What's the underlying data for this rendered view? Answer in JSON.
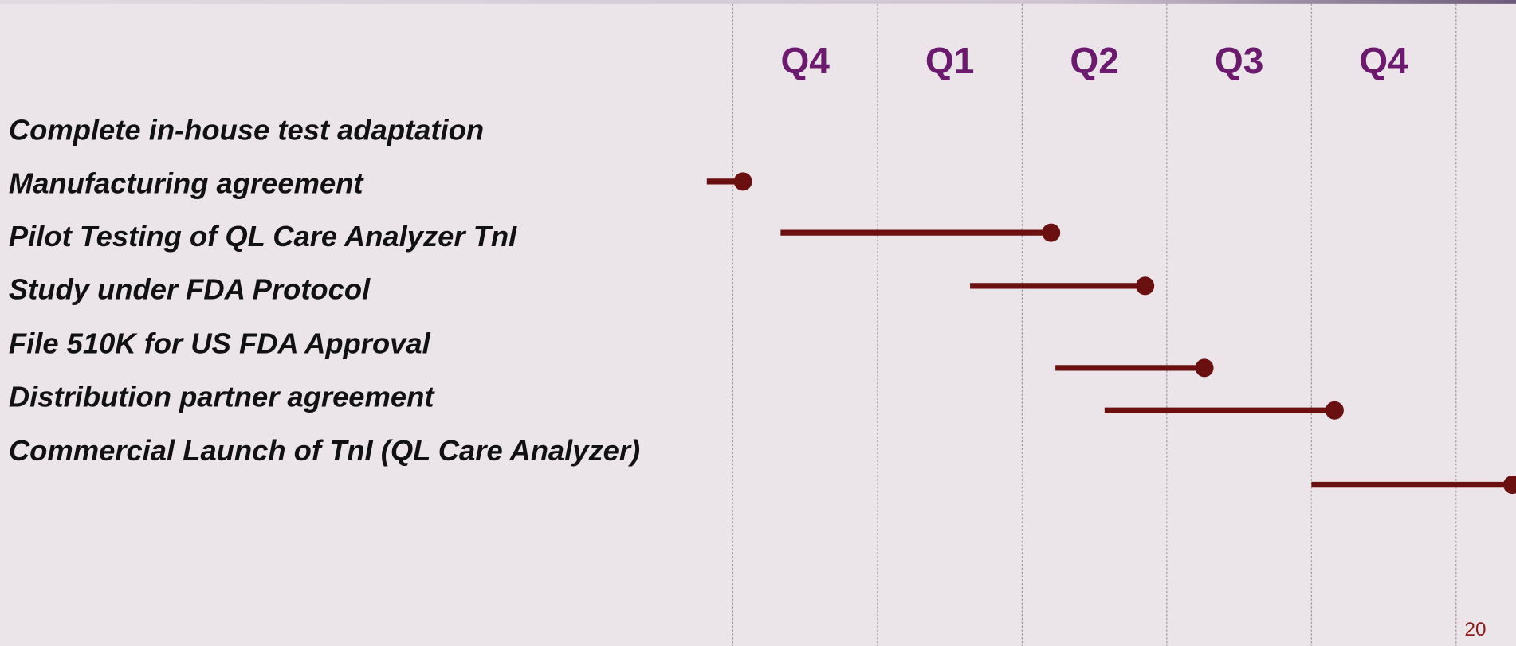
{
  "chart_data": {
    "type": "gantt",
    "categories": [
      "Q4",
      "Q1",
      "Q2",
      "Q3",
      "Q4"
    ],
    "tasks": [
      "Complete in-house test adaptation",
      "Manufacturing agreement",
      "Pilot Testing of QL Care Analyzer TnI",
      "Study under FDA Protocol",
      "File 510K for US FDA Approval",
      "Distribution partner agreement",
      "Commercial Launch of TnI (QL Care Analyzer)"
    ],
    "start": [
      null,
      -0.18,
      0.33,
      1.64,
      2.23,
      2.57,
      4.0
    ],
    "end": [
      null,
      0.07,
      2.2,
      2.85,
      3.26,
      4.16,
      5.39
    ],
    "color": "#6a1010",
    "xlim": [
      0,
      5
    ],
    "xticks": [
      0,
      1,
      2,
      3,
      4,
      5
    ],
    "grid": true,
    "page_number": "20"
  }
}
